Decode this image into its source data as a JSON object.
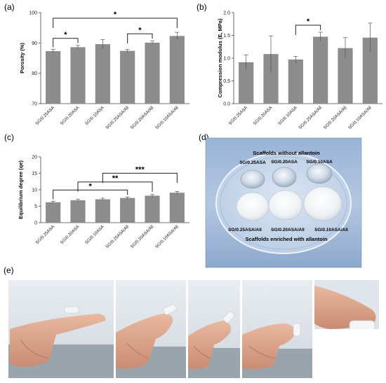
{
  "panels": {
    "a": "(a)",
    "b": "(b)",
    "c": "(c)",
    "d": "(d)",
    "e": "(e)"
  },
  "photo_d": {
    "top_title": "Scaffolds without allantoin",
    "top_labels": [
      "SG/0.25ASA",
      "SG/0.20ASA",
      "SG/0.10ASA"
    ],
    "bottom_labels": [
      "SG/0.25ASA/All",
      "SG/0.20ASA/All",
      "SG/0.10ASA/All"
    ],
    "bottom_title": "Scaffolds enriched with allantoin"
  },
  "chart_data": [
    {
      "type": "bar",
      "panel": "a",
      "categories": [
        "SG/0.25ASA",
        "SG/0.20ASA",
        "SG/0.10ASA",
        "SG/0.25ASA/All",
        "SG/0.20ASA/All",
        "SG/0.10ASA/All"
      ],
      "values": [
        87.3,
        88.6,
        89.6,
        87.4,
        90.1,
        92.3
      ],
      "errors": [
        0.6,
        0.6,
        1.5,
        0.5,
        0.6,
        1.2
      ],
      "ylabel": "Porosity (%)",
      "ylim": [
        70,
        100
      ],
      "yticks": [
        70,
        80,
        90,
        100
      ],
      "significance": [
        {
          "from": 0,
          "to": 1,
          "label": "*"
        },
        {
          "from": 3,
          "to": 4,
          "label": "*"
        },
        {
          "from": 0,
          "to": 5,
          "label": "*"
        }
      ]
    },
    {
      "type": "bar",
      "panel": "b",
      "categories": [
        "SG/0.25ASA",
        "SG/0.20ASA",
        "SG/0.10ASA",
        "SG/0.25ASA/All",
        "SG/0.20ASA/All",
        "SG/0.10ASA/All"
      ],
      "values": [
        0.91,
        1.09,
        0.97,
        1.47,
        1.22,
        1.45
      ],
      "errors": [
        0.16,
        0.4,
        0.07,
        0.1,
        0.23,
        0.32
      ],
      "ylabel": "Compression modulus (E, MPa)",
      "ylim": [
        0,
        2.0
      ],
      "yticks": [
        "0.0",
        "0.5",
        "1.0",
        "1.5",
        "2.0"
      ],
      "significance": [
        {
          "from": 2,
          "to": 3,
          "label": "*"
        }
      ]
    },
    {
      "type": "bar",
      "panel": "c",
      "categories": [
        "SG/0.25ASA",
        "SG/0.20ASA",
        "SG/0.10ASA",
        "SG/0.25ASA/All",
        "SG/0.20ASA/All",
        "SG/0.10ASA/All"
      ],
      "values": [
        6.2,
        6.8,
        7.1,
        7.5,
        8.2,
        9.1
      ],
      "errors": [
        0.3,
        0.3,
        0.35,
        0.3,
        0.35,
        0.4
      ],
      "ylabel": "Equilibrium degree (qe)",
      "ylim": [
        0,
        20
      ],
      "yticks": [
        0,
        5,
        10,
        15,
        20
      ],
      "significance": [
        {
          "from": 0,
          "to": 3,
          "label": "*"
        },
        {
          "from": 1,
          "to": 4,
          "label": "**"
        },
        {
          "from": 2,
          "to": 5,
          "label": "***"
        }
      ]
    }
  ]
}
